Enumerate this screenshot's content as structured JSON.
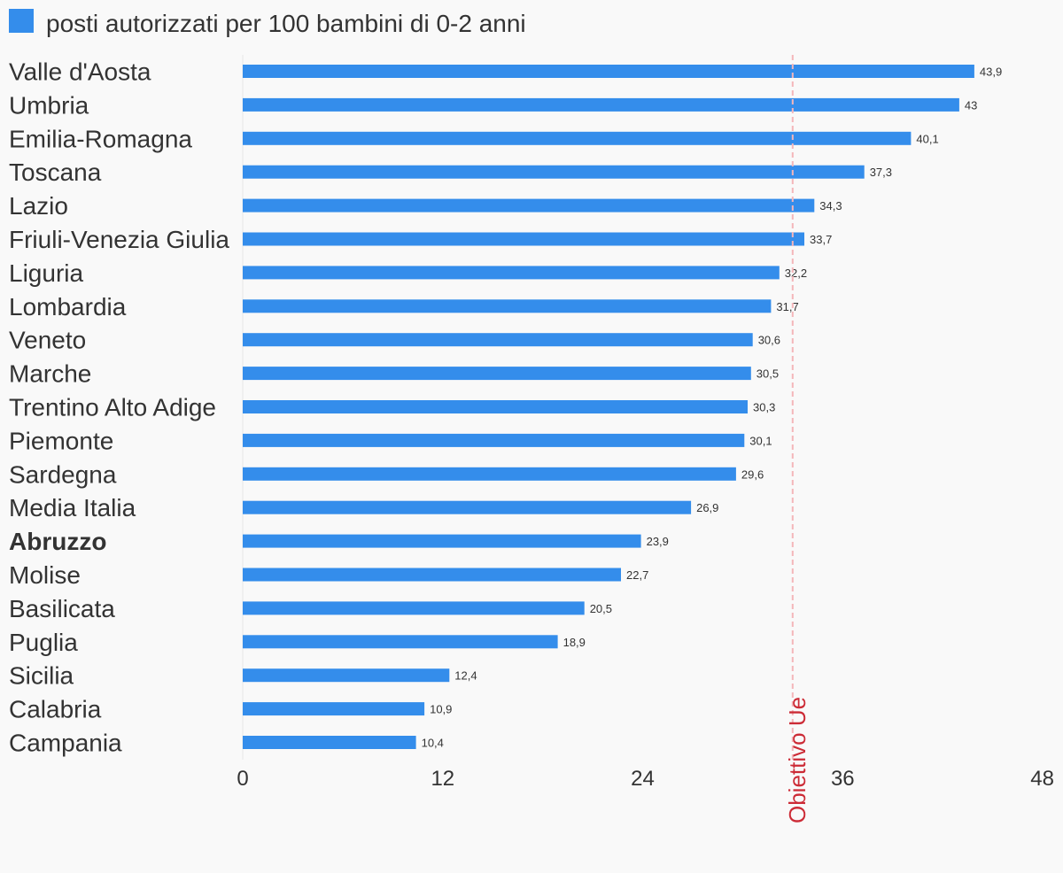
{
  "chart_data": {
    "type": "bar",
    "orientation": "horizontal",
    "categories": [
      "Valle d'Aosta",
      "Umbria",
      "Emilia-Romagna",
      "Toscana",
      "Lazio",
      "Friuli-Venezia Giulia",
      "Liguria",
      "Lombardia",
      "Veneto",
      "Marche",
      "Trentino Alto Adige",
      "Piemonte",
      "Sardegna",
      "Media Italia",
      "Abruzzo",
      "Molise",
      "Basilicata",
      "Puglia",
      "Sicilia",
      "Calabria",
      "Campania"
    ],
    "highlighted_category": "Abruzzo",
    "series": [
      {
        "name": "posti autorizzati per 100 bambini di 0-2 anni",
        "color": "#348deb",
        "values": [
          43.9,
          43,
          40.1,
          37.3,
          34.3,
          33.7,
          32.2,
          31.7,
          30.6,
          30.5,
          30.3,
          30.1,
          29.6,
          26.9,
          23.9,
          22.7,
          20.5,
          18.9,
          12.4,
          10.9,
          10.4
        ],
        "value_labels": [
          "43,9",
          "43",
          "40,1",
          "37,3",
          "34,3",
          "33,7",
          "32,2",
          "31,7",
          "30,6",
          "30,5",
          "30,3",
          "30,1",
          "29,6",
          "26,9",
          "23,9",
          "22,7",
          "20,5",
          "18,9",
          "12,4",
          "10,9",
          "10,4"
        ]
      }
    ],
    "xlim": [
      0,
      48
    ],
    "xticks": [
      0,
      12,
      24,
      36,
      48
    ],
    "xtick_labels": [
      "0",
      "12",
      "24",
      "36",
      "48"
    ],
    "reference_line": {
      "value": 33,
      "label": "Obiettivo Ue",
      "color": "#cc2b36",
      "style": "dashed"
    },
    "legend": {
      "placement": "top-left"
    },
    "grid": false
  }
}
